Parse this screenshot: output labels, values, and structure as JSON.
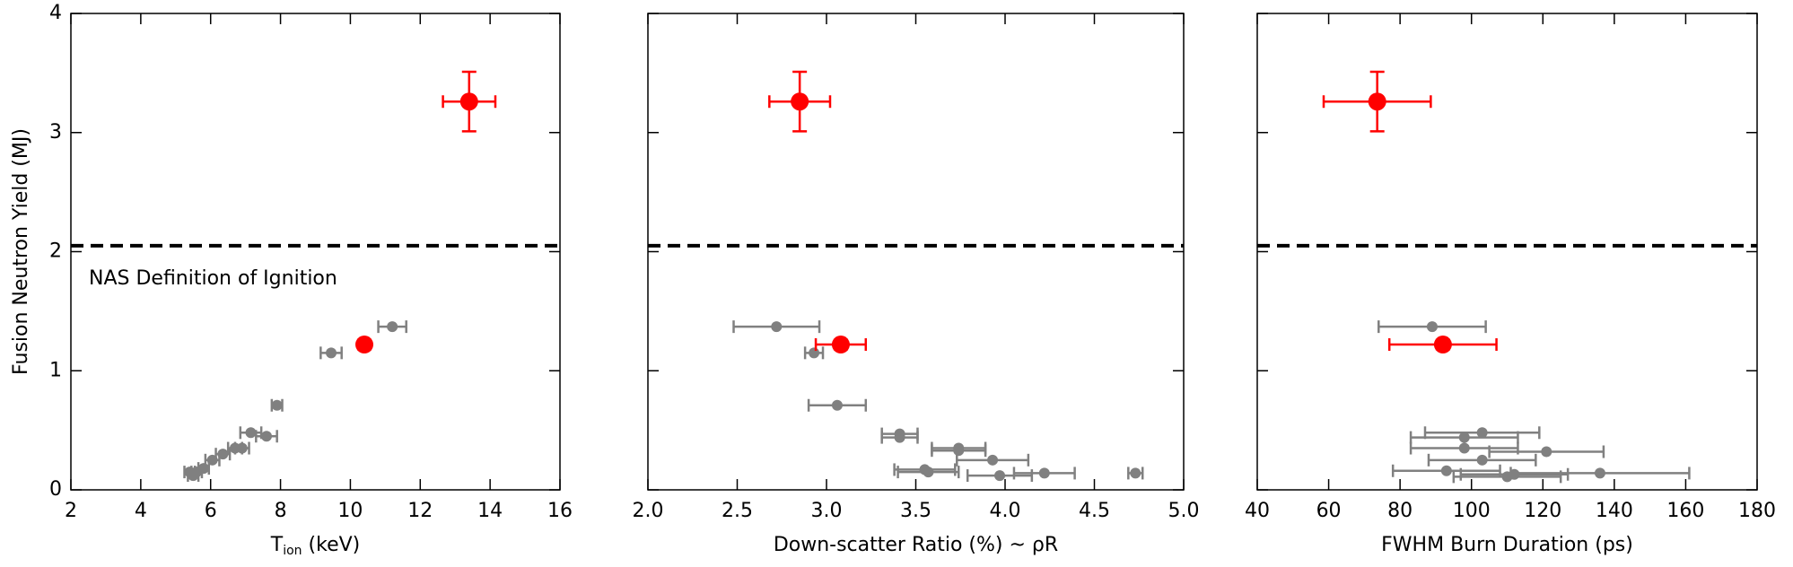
{
  "chart_data": [
    {
      "type": "scatter",
      "ylabel": "Fusion Neutron Yield (MJ)",
      "xlabel": {
        "main": "T",
        "sub": "ion",
        "rest": " (keV)"
      },
      "xlim": [
        2,
        16
      ],
      "xticks": [
        2,
        4,
        6,
        8,
        10,
        12,
        14,
        16
      ],
      "ylim": [
        0,
        4
      ],
      "yticks": [
        0,
        1,
        2,
        3,
        4
      ],
      "hline": 2.05,
      "annotation": "NAS Definition of Ignition",
      "series": [
        {
          "color": "#808080",
          "marker_size": 6,
          "x": [
            11.2,
            9.45,
            7.9,
            7.15,
            7.6,
            6.9,
            6.7,
            6.35,
            6.05,
            5.8,
            5.6,
            5.4,
            5.5
          ],
          "y": [
            1.37,
            1.15,
            0.71,
            0.48,
            0.45,
            0.35,
            0.35,
            0.3,
            0.25,
            0.18,
            0.15,
            0.15,
            0.12
          ],
          "xerr": [
            0.4,
            0.3,
            0.15,
            0.3,
            0.3,
            0.2,
            0.2,
            0.2,
            0.2,
            0.15,
            0.15,
            0.15,
            0.15
          ]
        },
        {
          "color": "#ff0000",
          "marker_size": 10,
          "x": [
            13.4,
            10.4
          ],
          "y": [
            3.26,
            1.22
          ],
          "xerr": [
            0.75,
            0.15
          ],
          "yerr": [
            0.25,
            0.04
          ]
        }
      ]
    },
    {
      "type": "scatter",
      "xlabel": "Down-scatter Ratio (%) ~ ρR",
      "xlim": [
        2,
        5
      ],
      "xticks": [
        {
          "value": 2,
          "label": "2.0"
        },
        2.5,
        {
          "value": 3,
          "label": "3.0"
        },
        3.5,
        {
          "value": 4,
          "label": "4.0"
        },
        4.5,
        {
          "value": 5,
          "label": "5.0"
        }
      ],
      "ylim": [
        0,
        4
      ],
      "hline": 2.05,
      "series": [
        {
          "color": "#808080",
          "marker_size": 6,
          "x": [
            2.72,
            2.93,
            3.06,
            3.41,
            3.41,
            3.74,
            3.74,
            3.93,
            3.55,
            3.57,
            4.22,
            3.97,
            4.73
          ],
          "y": [
            1.37,
            1.15,
            0.71,
            0.47,
            0.44,
            0.35,
            0.33,
            0.25,
            0.17,
            0.15,
            0.14,
            0.12,
            0.14
          ],
          "xerr": [
            0.24,
            0.05,
            0.16,
            0.1,
            0.1,
            0.15,
            0.15,
            0.2,
            0.17,
            0.17,
            0.17,
            0.18,
            0.04
          ]
        },
        {
          "color": "#ff0000",
          "marker_size": 10,
          "x": [
            2.85,
            3.08
          ],
          "y": [
            3.26,
            1.22
          ],
          "xerr": [
            0.17,
            0.14
          ],
          "yerr": [
            0.25,
            0.04
          ]
        }
      ]
    },
    {
      "type": "scatter",
      "xlabel": "FWHM Burn Duration (ps)",
      "xlim": [
        40,
        180
      ],
      "xticks": [
        40,
        60,
        80,
        100,
        120,
        140,
        160,
        180
      ],
      "ylim": [
        0,
        4
      ],
      "hline": 2.05,
      "series": [
        {
          "color": "#808080",
          "marker_size": 6,
          "x": [
            89,
            103,
            98,
            98,
            121,
            103,
            93,
            112,
            136,
            110
          ],
          "y": [
            1.37,
            0.48,
            0.44,
            0.35,
            0.32,
            0.25,
            0.16,
            0.13,
            0.14,
            0.11
          ],
          "xerr": [
            15,
            16,
            15,
            15,
            16,
            15,
            15,
            15,
            25,
            15
          ]
        },
        {
          "color": "#ff0000",
          "marker_size": 10,
          "x": [
            73.6,
            92
          ],
          "y": [
            3.26,
            1.22
          ],
          "xerr": [
            15,
            15
          ],
          "yerr": [
            0.25,
            0.04
          ]
        }
      ]
    }
  ]
}
